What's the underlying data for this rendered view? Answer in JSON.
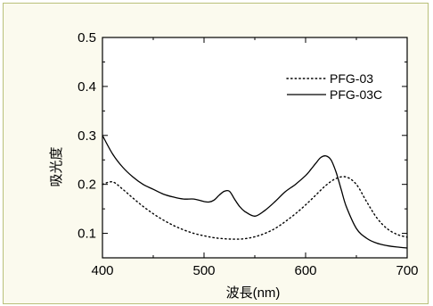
{
  "chart_data": {
    "type": "line",
    "xlabel": "波長(nm)",
    "ylabel": "吸光度",
    "xlim": [
      400,
      700
    ],
    "ylim": [
      0.05,
      0.5
    ],
    "x_ticks": [
      "400",
      "500",
      "600",
      "700"
    ],
    "y_ticks": [
      "0.1",
      "0.2",
      "0.3",
      "0.4",
      "0.5"
    ],
    "legend_position": "top-right",
    "series": [
      {
        "name": "PFG-03",
        "style": "dotted",
        "color": "#000000",
        "x": [
          400,
          410,
          420,
          430,
          440,
          450,
          460,
          470,
          480,
          490,
          500,
          510,
          520,
          530,
          540,
          550,
          560,
          570,
          580,
          590,
          600,
          610,
          620,
          630,
          640,
          650,
          660,
          670,
          680,
          690,
          700
        ],
        "y": [
          0.2,
          0.205,
          0.19,
          0.172,
          0.155,
          0.14,
          0.127,
          0.116,
          0.107,
          0.1,
          0.095,
          0.091,
          0.089,
          0.088,
          0.089,
          0.093,
          0.1,
          0.11,
          0.124,
          0.14,
          0.158,
          0.178,
          0.198,
          0.212,
          0.215,
          0.2,
          0.165,
          0.132,
          0.11,
          0.098,
          0.092
        ]
      },
      {
        "name": "PFG-03C",
        "style": "solid",
        "color": "#000000",
        "x": [
          400,
          410,
          420,
          430,
          440,
          450,
          460,
          470,
          480,
          490,
          500,
          505,
          510,
          515,
          520,
          525,
          530,
          535,
          540,
          550,
          560,
          570,
          580,
          590,
          600,
          605,
          610,
          615,
          620,
          625,
          630,
          635,
          640,
          650,
          660,
          670,
          680,
          690,
          700
        ],
        "y": [
          0.3,
          0.262,
          0.235,
          0.215,
          0.2,
          0.19,
          0.18,
          0.174,
          0.17,
          0.17,
          0.165,
          0.164,
          0.168,
          0.178,
          0.186,
          0.186,
          0.17,
          0.155,
          0.145,
          0.135,
          0.147,
          0.165,
          0.185,
          0.2,
          0.218,
          0.23,
          0.243,
          0.255,
          0.258,
          0.25,
          0.225,
          0.19,
          0.155,
          0.11,
          0.09,
          0.08,
          0.075,
          0.072,
          0.07
        ]
      }
    ]
  }
}
